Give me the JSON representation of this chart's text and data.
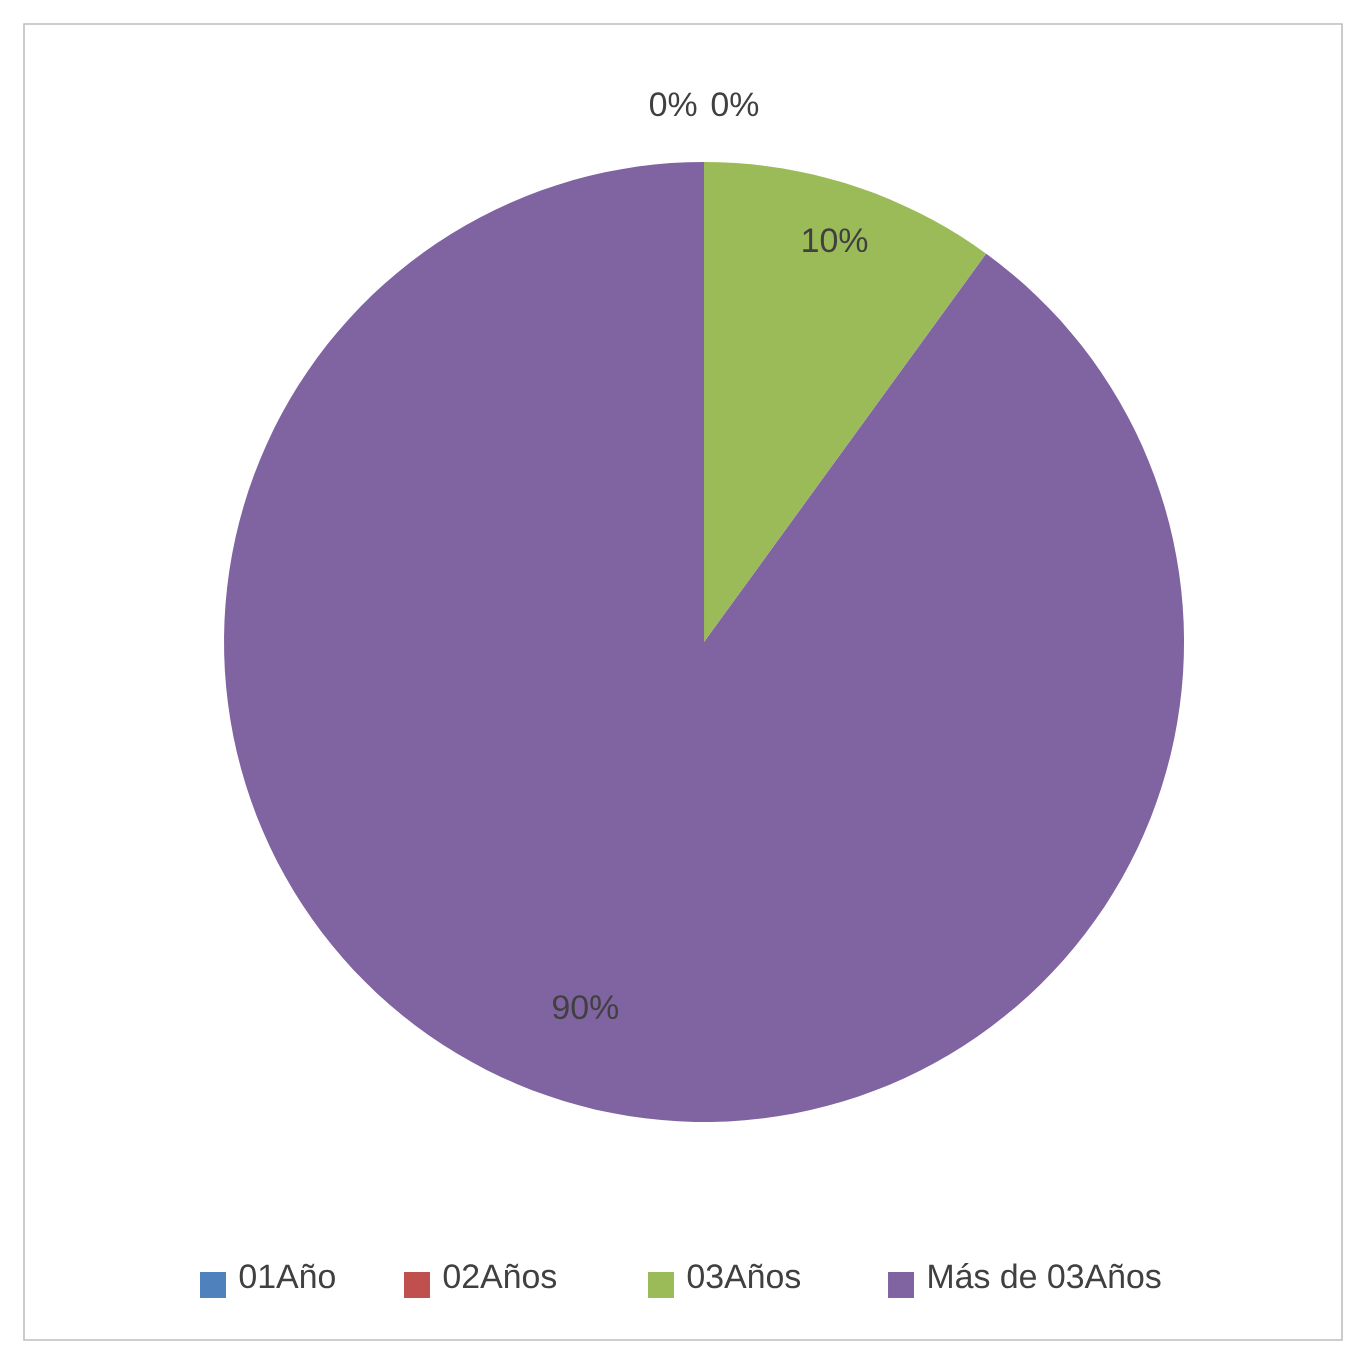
{
  "chart_data": {
    "type": "pie",
    "categories": [
      "01Año",
      "02Años",
      "03Años",
      "Más de 03Años"
    ],
    "values": [
      0,
      0,
      10,
      90
    ],
    "value_labels": [
      "0%",
      "0%",
      "10%",
      "90%"
    ],
    "colors": [
      "#4f81bd",
      "#c0504d",
      "#9bbb59",
      "#8064a2"
    ],
    "legend": "bottom"
  }
}
